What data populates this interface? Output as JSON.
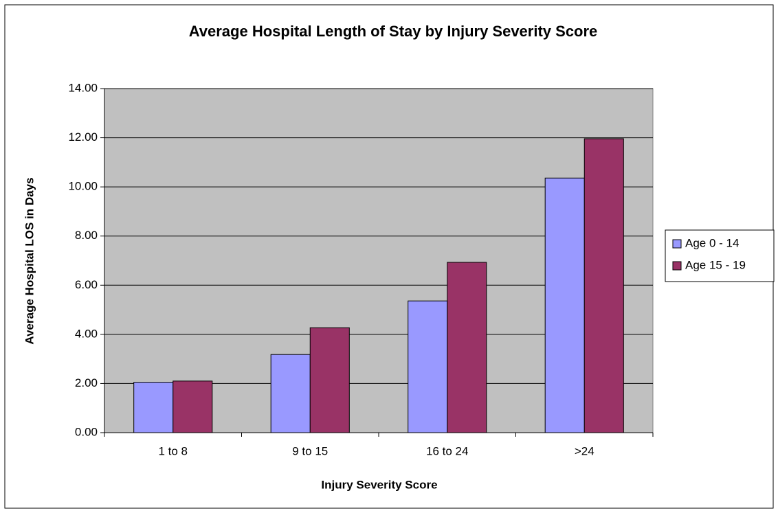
{
  "chart_data": {
    "type": "bar",
    "title": "Average Hospital Length of Stay by Injury Severity Score",
    "x_label": "Injury Severity Score",
    "y_label": "Average Hospital LOS in Days",
    "categories": [
      "1 to 8",
      "9 to 15",
      "16 to 24",
      ">24"
    ],
    "series": [
      {
        "name": "Age 0 - 14",
        "color": "#9999ff",
        "values": [
          2.05,
          3.18,
          5.36,
          10.36
        ]
      },
      {
        "name": "Age 15 - 19",
        "color": "#993366",
        "values": [
          2.1,
          4.27,
          6.93,
          11.96
        ]
      }
    ],
    "ylim": [
      0,
      14
    ],
    "yticks": [
      {
        "value": 0,
        "label": "0.00"
      },
      {
        "value": 2,
        "label": "2.00"
      },
      {
        "value": 4,
        "label": "4.00"
      },
      {
        "value": 6,
        "label": "6.00"
      },
      {
        "value": 8,
        "label": "8.00"
      },
      {
        "value": 10,
        "label": "10.00"
      },
      {
        "value": 12,
        "label": "12.00"
      },
      {
        "value": 14,
        "label": "14.00"
      }
    ],
    "grid": true,
    "legend": "right"
  }
}
